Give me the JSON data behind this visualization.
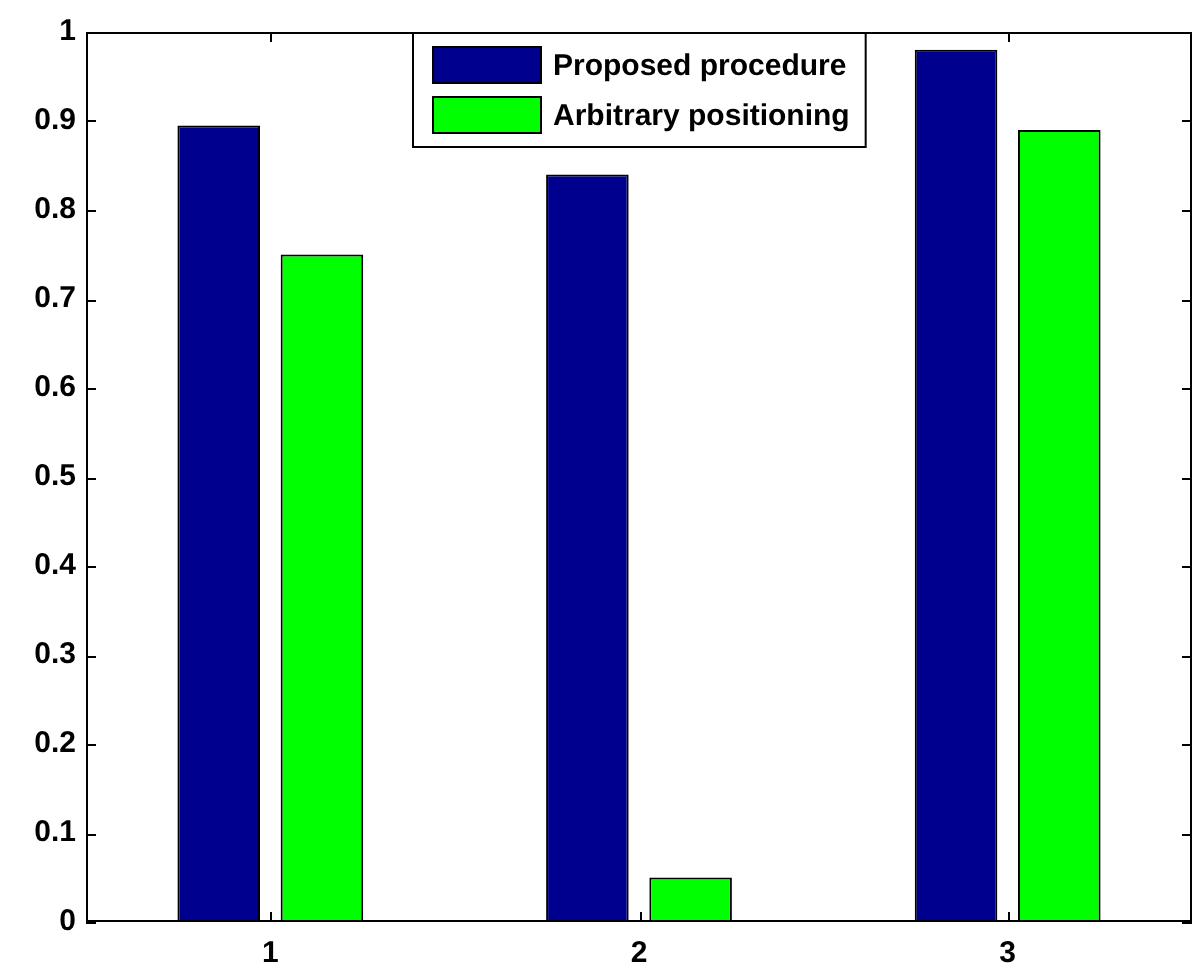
{
  "chart_data": {
    "type": "bar",
    "categories": [
      "1",
      "2",
      "3"
    ],
    "series": [
      {
        "name": "Proposed procedure",
        "color": "#00008f",
        "values": [
          0.895,
          0.84,
          0.98
        ]
      },
      {
        "name": "Arbitrary positioning",
        "color": "#00ff00",
        "values": [
          0.75,
          0.05,
          0.89
        ]
      }
    ],
    "ylim": [
      0,
      1
    ],
    "yticks": [
      0,
      0.1,
      0.2,
      0.3,
      0.4,
      0.5,
      0.6,
      0.7,
      0.8,
      0.9,
      1
    ],
    "legend": "top"
  }
}
